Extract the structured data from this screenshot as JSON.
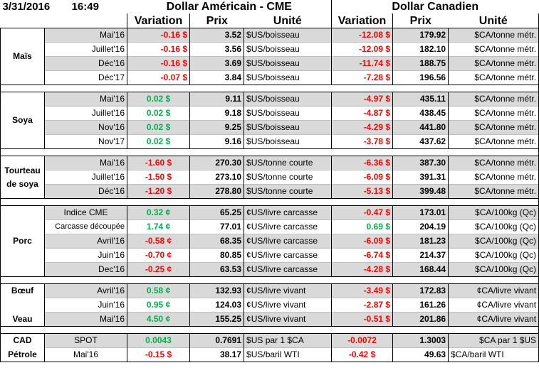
{
  "header": {
    "date": "3/31/2016",
    "time": "16:49",
    "usd_title": "Dollar Américain - CME",
    "cad_title": "Dollar Canadien",
    "col_variation": "Variation",
    "col_prix": "Prix",
    "col_unite": "Unité"
  },
  "colors": {
    "negative": "#ff0000",
    "positive": "#00b050",
    "band": "#d9d9d9"
  },
  "groups": [
    {
      "label": "Maïs",
      "rows": [
        {
          "period": "Mai'16",
          "us_var": "-0.16 $",
          "us_price": "3.52",
          "us_unit": "$US/boisseau",
          "ca_var": "-12.08 $",
          "ca_price": "179.92",
          "ca_unit": "$CA/tonne métr."
        },
        {
          "period": "Juillet'16",
          "us_var": "-0.16 $",
          "us_price": "3.56",
          "us_unit": "$US/boisseau",
          "ca_var": "-12.09 $",
          "ca_price": "182.10",
          "ca_unit": "$CA/tonne métr."
        },
        {
          "period": "Déc'16",
          "us_var": "-0.16 $",
          "us_price": "3.69",
          "us_unit": "$US/boisseau",
          "ca_var": "-11.74 $",
          "ca_price": "188.75",
          "ca_unit": "$CA/tonne métr."
        },
        {
          "period": "Déc'17",
          "us_var": "-0.07 $",
          "us_price": "3.84",
          "us_unit": "$US/boisseau",
          "ca_var": "-7.28 $",
          "ca_price": "196.56",
          "ca_unit": "$CA/tonne métr."
        }
      ]
    },
    {
      "label": "Soya",
      "rows": [
        {
          "period": "Mai'16",
          "us_var": "0.02 $",
          "us_price": "9.11",
          "us_unit": "$US/boisseau",
          "ca_var": "-4.97 $",
          "ca_price": "435.11",
          "ca_unit": "$CA/tonne métr."
        },
        {
          "period": "Juillet'16",
          "us_var": "0.02 $",
          "us_price": "9.18",
          "us_unit": "$US/boisseau",
          "ca_var": "-4.87 $",
          "ca_price": "438.45",
          "ca_unit": "$CA/tonne métr."
        },
        {
          "period": "Nov'16",
          "us_var": "0.02 $",
          "us_price": "9.25",
          "us_unit": "$US/boisseau",
          "ca_var": "-4.29 $",
          "ca_price": "441.80",
          "ca_unit": "$CA/tonne métr."
        },
        {
          "period": "Nov'17",
          "us_var": "0.02 $",
          "us_price": "9.16",
          "us_unit": "$US/boisseau",
          "ca_var": "-3.78 $",
          "ca_price": "437.62",
          "ca_unit": "$CA/tonne métr."
        }
      ]
    },
    {
      "label_line1": "Tourteau",
      "label_line2": "de soya",
      "rows": [
        {
          "period": "Mai'16",
          "us_var": "-1.60 $",
          "us_price": "270.30",
          "us_unit": "$US/tonne courte",
          "ca_var": "-6.36 $",
          "ca_price": "387.30",
          "ca_unit": "$CA/tonne métr."
        },
        {
          "period": "Juillet'16",
          "us_var": "-1.50 $",
          "us_price": "273.10",
          "us_unit": "$US/tonne courte",
          "ca_var": "-6.09 $",
          "ca_price": "391.31",
          "ca_unit": "$CA/tonne métr."
        },
        {
          "period": "Déc'16",
          "us_var": "-1.20 $",
          "us_price": "278.80",
          "us_unit": "$US/tonne courte",
          "ca_var": "-5.13 $",
          "ca_price": "399.48",
          "ca_unit": "$CA/tonne métr."
        }
      ]
    },
    {
      "label": "Porc",
      "rows": [
        {
          "period": "Indice CME",
          "us_var": "0.32 ¢",
          "us_price": "65.25",
          "us_unit": "¢US/livre carcasse",
          "ca_var": "-0.47 $",
          "ca_price": "173.01",
          "ca_unit": "$CA/100kg (Qc)"
        },
        {
          "period": "Carcasse découpée",
          "us_var": "1.74 ¢",
          "us_price": "77.01",
          "us_unit": "¢US/livre carcasse",
          "ca_var": "0.69 $",
          "ca_price": "204.19",
          "ca_unit": "$CA/100kg (Qc)"
        },
        {
          "period": "Avril'16",
          "us_var": "-0.58 ¢",
          "us_price": "68.35",
          "us_unit": "¢US/livre carcasse",
          "ca_var": "-6.09 $",
          "ca_price": "181.23",
          "ca_unit": "$CA/100kg (Qc)"
        },
        {
          "period": "Juin'16",
          "us_var": "-0.70 ¢",
          "us_price": "80.85",
          "us_unit": "¢US/livre carcasse",
          "ca_var": "-6.74 $",
          "ca_price": "214.37",
          "ca_unit": "$CA/100kg (Qc)"
        },
        {
          "period": "Dec'16",
          "us_var": "-0.25 ¢",
          "us_price": "63.53",
          "us_unit": "¢US/livre carcasse",
          "ca_var": "-4.28 $",
          "ca_price": "168.44",
          "ca_unit": "$CA/100kg (Qc)"
        }
      ]
    },
    {
      "label_boeuf": "Bœuf",
      "label_veau": "Veau",
      "rows": [
        {
          "period": "Avril'16",
          "us_var": "0.58 ¢",
          "us_price": "132.93",
          "us_unit": "¢US/livre vivant",
          "ca_var": "-3.49 $",
          "ca_price": "172.83",
          "ca_unit": "¢CA/livre vivant"
        },
        {
          "period": "Juin'16",
          "us_var": "0.95 ¢",
          "us_price": "124.03",
          "us_unit": "¢US/livre vivant",
          "ca_var": "-2.87 $",
          "ca_price": "161.26",
          "ca_unit": "¢CA/livre vivant"
        },
        {
          "period": "Mai'16",
          "us_var": "4.50 ¢",
          "us_price": "155.25",
          "us_unit": "¢US/livre vivant",
          "ca_var": "-0.51 $",
          "ca_price": "201.86",
          "ca_unit": "¢CA/livre vivant"
        }
      ]
    },
    {
      "label_cad": "CAD",
      "label_petrole": "Pétrole",
      "rows": [
        {
          "period": "SPOT",
          "us_var": "0.0043",
          "us_price": "0.7691",
          "us_unit": "$US par 1 $CA",
          "ca_var": "-0.0072",
          "ca_price": "1.3003",
          "ca_unit": "$CA par 1 $US"
        },
        {
          "period": "Mai'16",
          "us_var": "-0.15 $",
          "us_price": "38.17",
          "us_unit": "$US/baril WTI",
          "ca_var": "-0.42 $",
          "ca_price": "49.63",
          "ca_unit": "$CA/baril WTI"
        }
      ]
    }
  ]
}
